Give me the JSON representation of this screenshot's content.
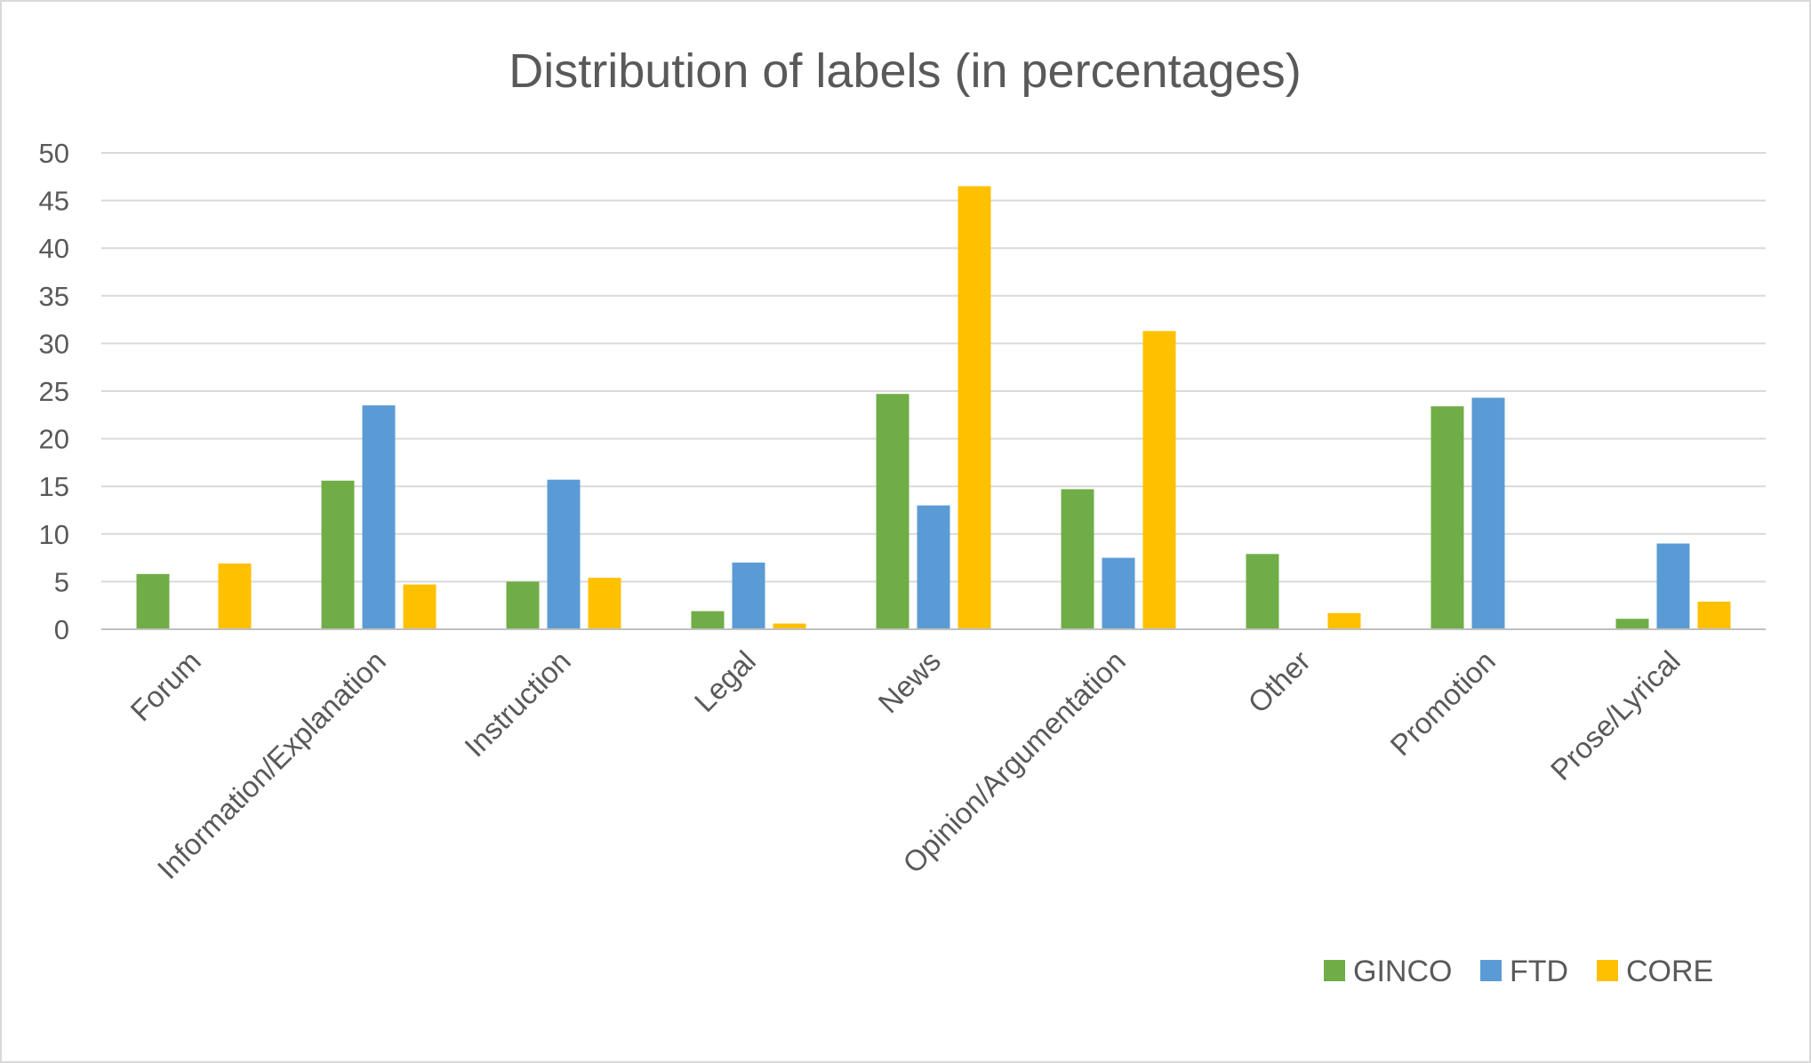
{
  "chart_data": {
    "type": "bar",
    "title": "Distribution of labels (in percentages)",
    "xlabel": "",
    "ylabel": "",
    "ylim": [
      0,
      50
    ],
    "yticks": [
      0,
      5,
      10,
      15,
      20,
      25,
      30,
      35,
      40,
      45,
      50
    ],
    "grid": true,
    "legend_position": "bottom-right",
    "categories": [
      "Forum",
      "Information/Explanation",
      "Instruction",
      "Legal",
      "News",
      "Opinion/Argumentation",
      "Other",
      "Promotion",
      "Prose/Lyrical"
    ],
    "series": [
      {
        "name": "GINCO",
        "color": "#70ad47",
        "values": [
          5.8,
          15.6,
          5.0,
          1.9,
          24.7,
          14.7,
          7.9,
          23.4,
          1.1
        ]
      },
      {
        "name": "FTD",
        "color": "#5b9bd5",
        "values": [
          0,
          23.5,
          15.7,
          7.0,
          13.0,
          7.5,
          0,
          24.3,
          9.0
        ]
      },
      {
        "name": "CORE",
        "color": "#ffc000",
        "values": [
          6.9,
          4.7,
          5.4,
          0.6,
          46.5,
          31.3,
          1.7,
          0,
          2.9
        ]
      }
    ]
  }
}
